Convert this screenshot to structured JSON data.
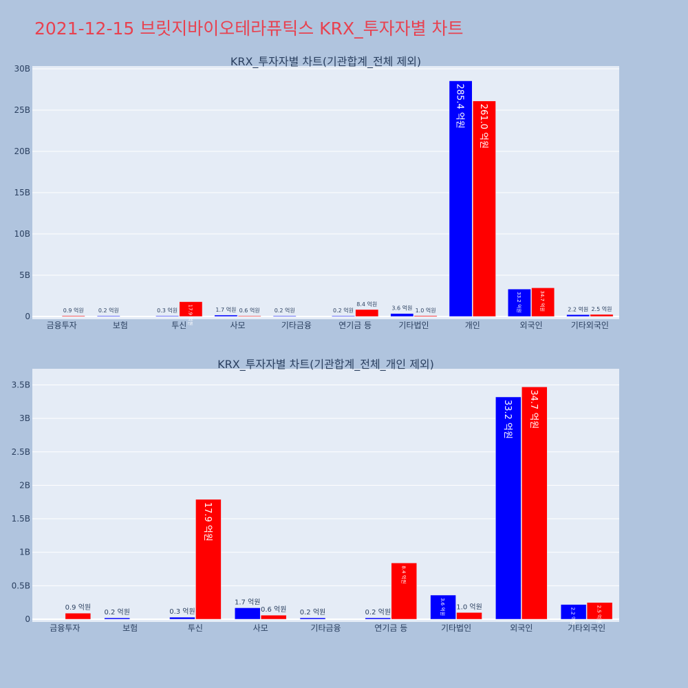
{
  "page": {
    "title": "2021-12-15 브릿지바이오테라퓨틱스 KRX_투자자별 차트"
  },
  "colors": {
    "background": "#b0c4de",
    "plot_bg": "#e5ecf6",
    "title": "#e8414f",
    "buy": "#0000ff",
    "sell": "#ff0000"
  },
  "chart_data": [
    {
      "type": "bar",
      "title": "KRX_투자자별 차트(기관합계_전체 제외)",
      "categories": [
        "금융투자",
        "보험",
        "투신",
        "사모",
        "기타금융",
        "연기금 등",
        "기타법인",
        "개인",
        "외국인",
        "기타외국인"
      ],
      "series": [
        {
          "color": "#0000ff",
          "values": [
            0,
            0.02,
            0.03,
            0.17,
            0.02,
            0.02,
            0.36,
            28.54,
            3.32,
            0.22
          ],
          "labels": [
            "",
            "0.2 억원",
            "0.3 억원",
            "1.7 억원",
            "0.2 억원",
            "0.2 억원",
            "3.6 억원",
            "285.4 억원",
            "33.2 억원",
            "2.2 억원"
          ]
        },
        {
          "color": "#ff0000",
          "values": [
            0.09,
            0,
            1.79,
            0.06,
            0,
            0.84,
            0.1,
            26.1,
            3.47,
            0.25
          ],
          "labels": [
            "0.9 억원",
            "",
            "17.9 억원",
            "0.6 억원",
            "",
            "8.4 억원",
            "1.0 억원",
            "261.0 억원",
            "34.7 억원",
            "2.5 억원"
          ]
        }
      ],
      "ylim": [
        0,
        30
      ],
      "yticks": [
        0,
        5,
        10,
        15,
        20,
        25,
        30
      ],
      "ytick_labels": [
        "0",
        "5B",
        "10B",
        "15B",
        "20B",
        "25B",
        "30B"
      ],
      "grid": true
    },
    {
      "type": "bar",
      "title": "KRX_투자자별 차트(기관합계_전체_개인 제외)",
      "categories": [
        "금융투자",
        "보험",
        "투신",
        "사모",
        "기타금융",
        "연기금 등",
        "기타법인",
        "외국인",
        "기타외국인"
      ],
      "series": [
        {
          "color": "#0000ff",
          "values": [
            0,
            0.02,
            0.03,
            0.17,
            0.02,
            0.02,
            0.36,
            3.32,
            0.22
          ],
          "labels": [
            "",
            "0.2 억원",
            "0.3 억원",
            "1.7 억원",
            "0.2 억원",
            "0.2 억원",
            "3.6 억원",
            "33.2 억원",
            "2.2 억원"
          ]
        },
        {
          "color": "#ff0000",
          "values": [
            0.09,
            0,
            1.79,
            0.06,
            0,
            0.84,
            0.1,
            3.47,
            0.25
          ],
          "labels": [
            "0.9 억원",
            "",
            "17.9 억원",
            "0.6 억원",
            "",
            "8.4 억원",
            "1.0 억원",
            "34.7 억원",
            "2.5 억원"
          ]
        }
      ],
      "ylim": [
        0,
        3.7
      ],
      "yticks": [
        0,
        0.5,
        1,
        1.5,
        2,
        2.5,
        3,
        3.5
      ],
      "ytick_labels": [
        "0",
        "0.5B",
        "1B",
        "1.5B",
        "2B",
        "2.5B",
        "3B",
        "3.5B"
      ],
      "grid": true
    }
  ]
}
